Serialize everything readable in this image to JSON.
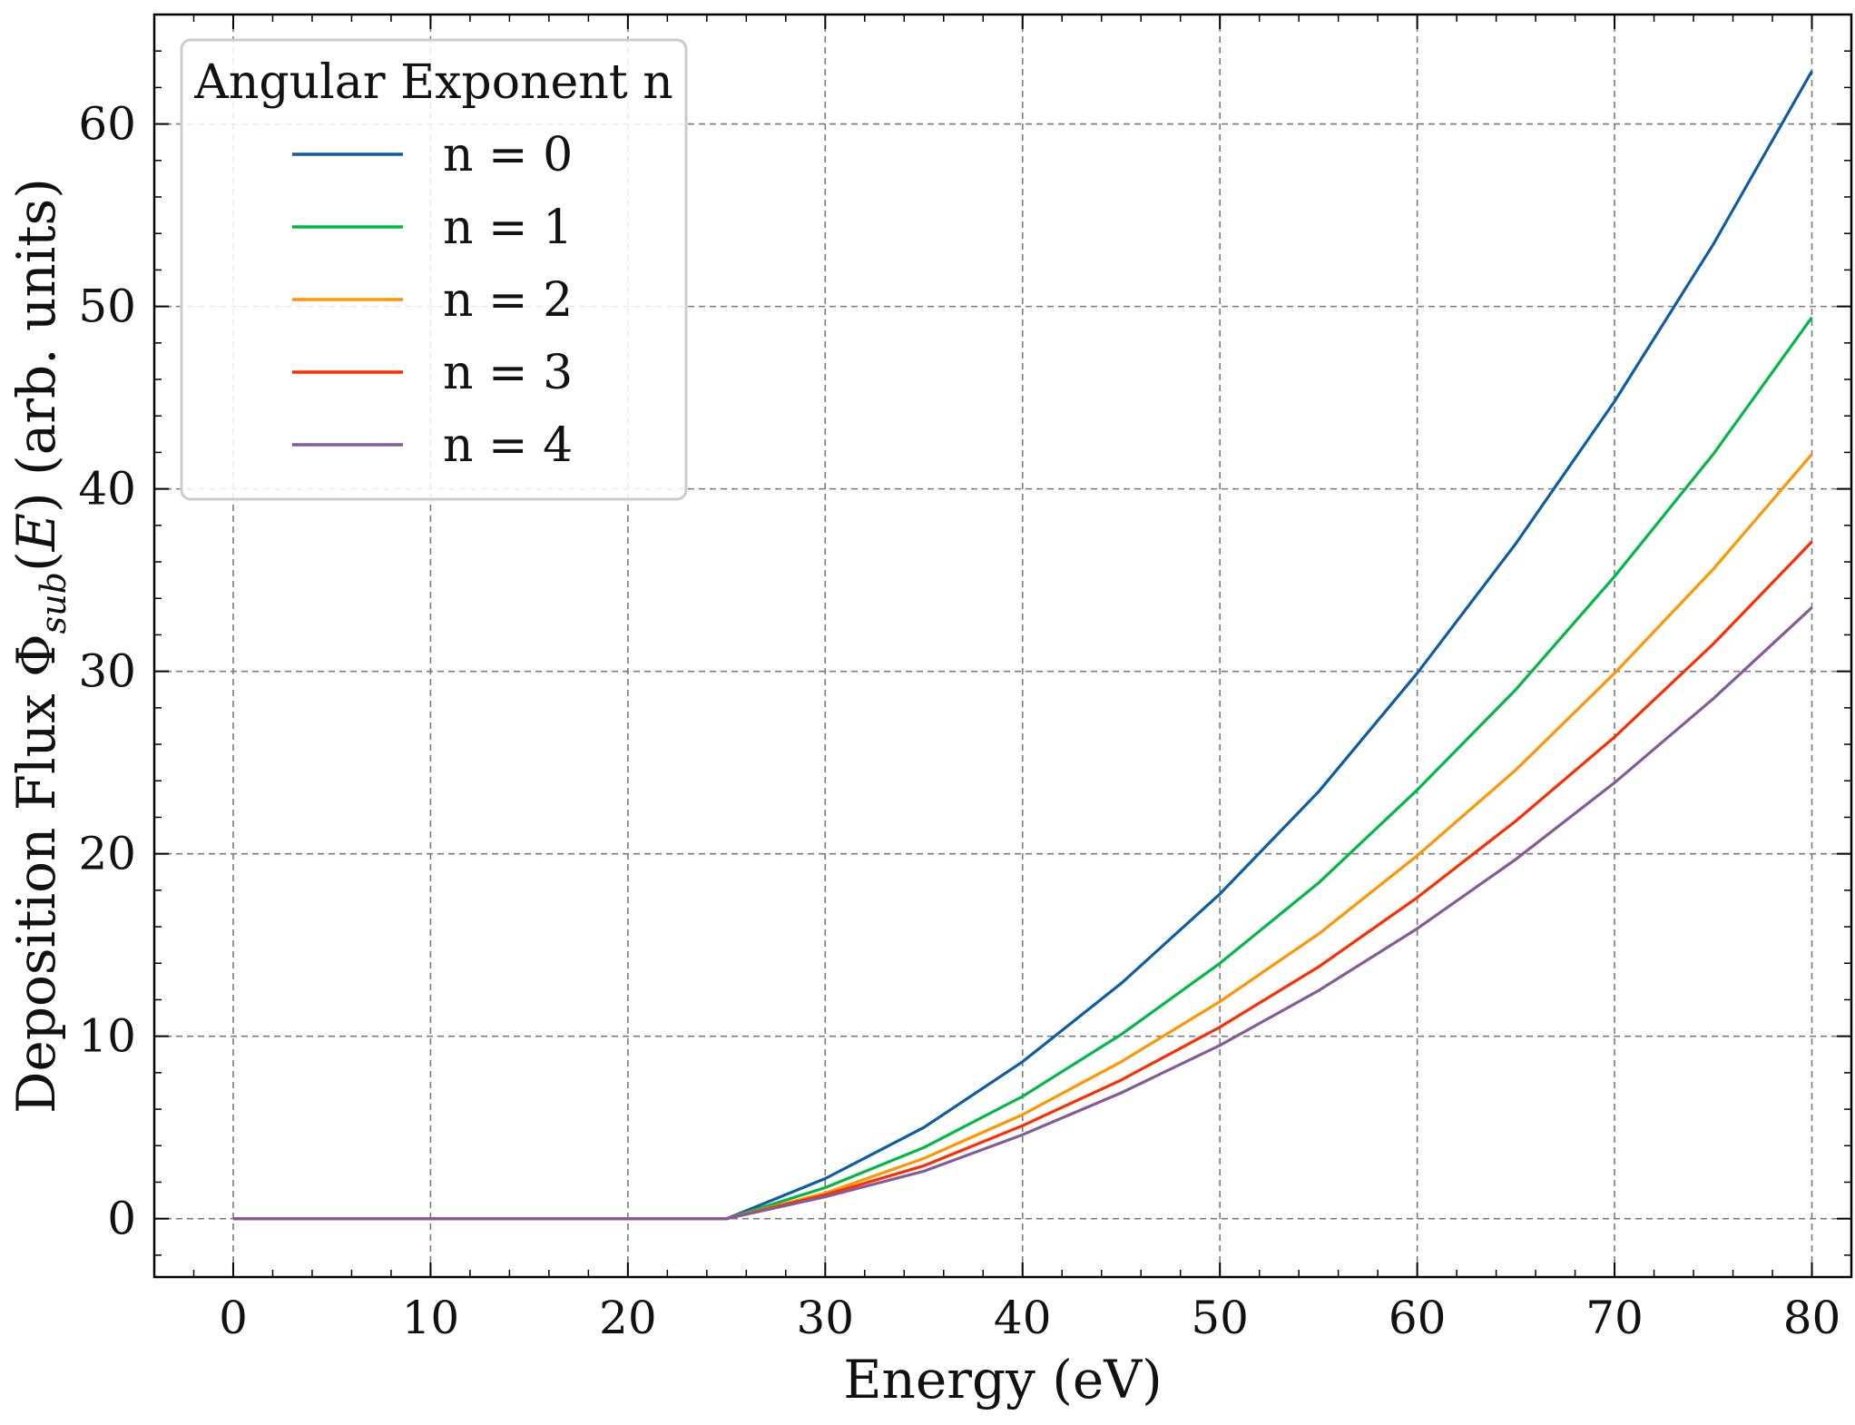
{
  "chart_data": {
    "type": "line",
    "xlabel": "Energy (eV)",
    "ylabel": {
      "prefix": "Deposition Flux ",
      "symbol": "Φ",
      "subscript": "sub",
      "open": "(",
      "arg": "E",
      "close": ")",
      "suffix": " (arb. units)"
    },
    "xlim": [
      -4,
      82
    ],
    "ylim": [
      -3.2,
      66
    ],
    "xticks": [
      0,
      10,
      20,
      30,
      40,
      50,
      60,
      70,
      80
    ],
    "yticks": [
      0,
      10,
      20,
      30,
      40,
      50,
      60
    ],
    "grid": true,
    "legend": {
      "title": "Angular Exponent n",
      "placement": "top-left"
    },
    "threshold": 25,
    "series": [
      {
        "name": "n = 0",
        "color": "#0c5da5",
        "x": [
          0,
          25,
          30,
          35,
          40,
          45,
          50,
          55,
          60,
          65,
          70,
          75,
          80
        ],
        "y": [
          0,
          0,
          2.2,
          5.0,
          8.6,
          12.9,
          17.8,
          23.4,
          29.9,
          37.0,
          44.8,
          53.4,
          62.9
        ]
      },
      {
        "name": "n = 1",
        "color": "#00b945",
        "x": [
          0,
          25,
          30,
          35,
          40,
          45,
          50,
          55,
          60,
          65,
          70,
          75,
          80
        ],
        "y": [
          0,
          0,
          1.7,
          3.9,
          6.7,
          10.1,
          14.0,
          18.4,
          23.5,
          29.0,
          35.2,
          41.9,
          49.4
        ]
      },
      {
        "name": "n = 2",
        "color": "#ff9500",
        "x": [
          0,
          25,
          30,
          35,
          40,
          45,
          50,
          55,
          60,
          65,
          70,
          75,
          80
        ],
        "y": [
          0,
          0,
          1.4,
          3.3,
          5.7,
          8.6,
          11.9,
          15.6,
          19.9,
          24.6,
          29.9,
          35.6,
          41.9
        ]
      },
      {
        "name": "n = 3",
        "color": "#ff2c00",
        "x": [
          0,
          25,
          30,
          35,
          40,
          45,
          50,
          55,
          60,
          65,
          70,
          75,
          80
        ],
        "y": [
          0,
          0,
          1.3,
          2.9,
          5.1,
          7.6,
          10.5,
          13.8,
          17.6,
          21.8,
          26.4,
          31.5,
          37.1
        ]
      },
      {
        "name": "n = 4",
        "color": "#845b97",
        "x": [
          0,
          25,
          30,
          35,
          40,
          45,
          50,
          55,
          60,
          65,
          70,
          75,
          80
        ],
        "y": [
          0,
          0,
          1.2,
          2.6,
          4.6,
          6.9,
          9.5,
          12.5,
          15.9,
          19.7,
          23.9,
          28.5,
          33.5
        ]
      }
    ]
  }
}
